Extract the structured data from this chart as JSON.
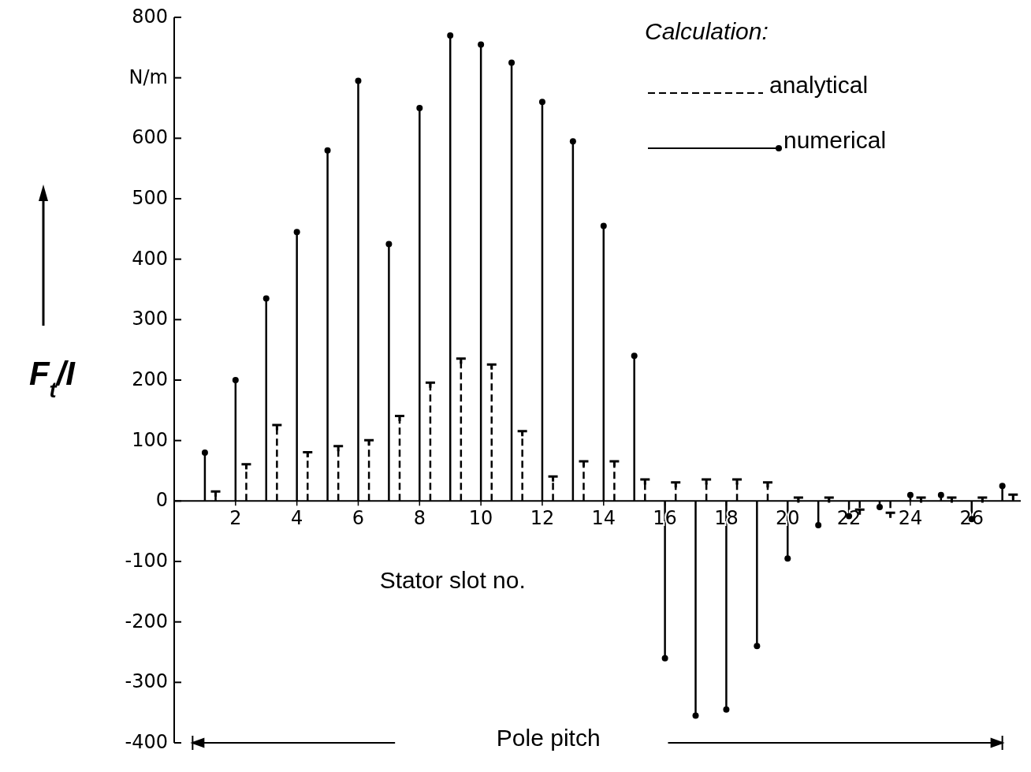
{
  "chart_data": {
    "type": "lollipop",
    "xlabel": "Stator slot no.",
    "ylabel": "F$_{t}$/I",
    "legend_title": "Calculation:",
    "legend": "top right",
    "grid": false,
    "x": [
      1,
      2,
      3,
      4,
      5,
      6,
      7,
      8,
      9,
      10,
      11,
      12,
      13,
      14,
      15,
      16,
      17,
      18,
      19,
      20,
      21,
      22,
      23,
      24,
      25,
      26,
      27
    ],
    "xlim": [
      0,
      27.6
    ],
    "xticks": [
      2,
      4,
      6,
      8,
      10,
      12,
      14,
      16,
      18,
      20,
      22,
      24,
      26
    ],
    "ylim": [
      -400,
      800
    ],
    "yticks": [
      -400,
      -300,
      -200,
      -100,
      0,
      100,
      200,
      300,
      400,
      500,
      600,
      {
        "value": 700,
        "label": "N/m"
      },
      800
    ],
    "series": [
      {
        "name": "analytical",
        "color": "#000000",
        "line_style": "dashed",
        "x": [
          1.35,
          2.35,
          3.35,
          4.35,
          5.35,
          6.35,
          7.35,
          8.35,
          9.35,
          10.35,
          11.35,
          12.35,
          13.35,
          14.35,
          15.35,
          16.35,
          17.35,
          18.35,
          19.35,
          20.35,
          21.35,
          22.35,
          23.35,
          24.35,
          25.35,
          26.35,
          27.35
        ],
        "values": [
          15,
          60,
          125,
          80,
          90,
          100,
          140,
          195,
          235,
          225,
          115,
          40,
          65,
          65,
          35,
          30,
          35,
          35,
          30,
          5,
          5,
          -15,
          -20,
          5,
          5,
          5,
          10
        ]
      },
      {
        "name": "numerical",
        "color": "#000000",
        "line_style": "solid",
        "marker": "circle",
        "values": [
          80,
          200,
          335,
          445,
          580,
          695,
          425,
          650,
          770,
          755,
          725,
          660,
          595,
          455,
          240,
          -260,
          -355,
          -345,
          -240,
          -95,
          -40,
          -25,
          -10,
          10,
          10,
          -30,
          25
        ]
      }
    ],
    "annotations": [
      "Pole pitch"
    ]
  }
}
